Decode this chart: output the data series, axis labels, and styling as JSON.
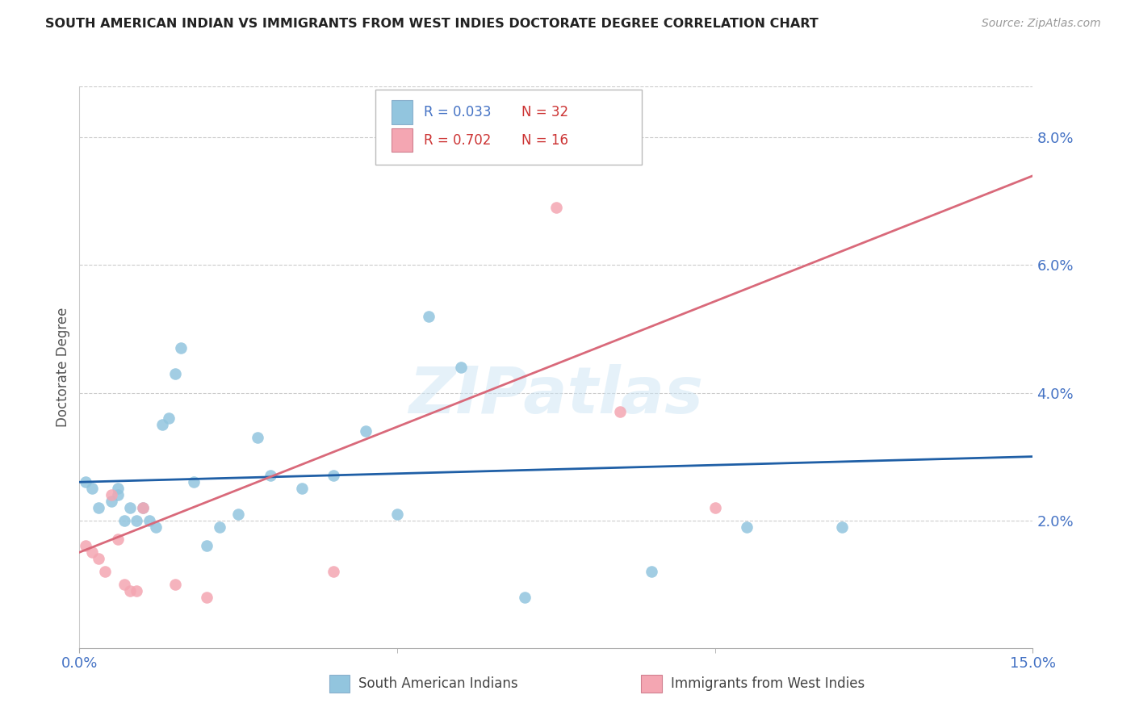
{
  "title": "SOUTH AMERICAN INDIAN VS IMMIGRANTS FROM WEST INDIES DOCTORATE DEGREE CORRELATION CHART",
  "source": "Source: ZipAtlas.com",
  "ylabel": "Doctorate Degree",
  "ytick_labels": [
    "2.0%",
    "4.0%",
    "6.0%",
    "8.0%"
  ],
  "ytick_values": [
    0.02,
    0.04,
    0.06,
    0.08
  ],
  "xlim": [
    0.0,
    0.15
  ],
  "ylim": [
    0.0,
    0.088
  ],
  "legend_label_blue": "South American Indians",
  "legend_label_pink": "Immigrants from West Indies",
  "blue_color": "#92c5de",
  "pink_color": "#f4a6b2",
  "line_blue_color": "#1f5fa6",
  "line_pink_color": "#d9697a",
  "tick_color": "#4472c4",
  "title_color": "#222222",
  "source_color": "#999999",
  "ylabel_color": "#555555",
  "grid_color": "#cccccc",
  "blue_scatter_x": [
    0.001,
    0.002,
    0.003,
    0.005,
    0.006,
    0.006,
    0.007,
    0.008,
    0.009,
    0.01,
    0.011,
    0.012,
    0.013,
    0.014,
    0.015,
    0.016,
    0.018,
    0.02,
    0.022,
    0.025,
    0.028,
    0.03,
    0.035,
    0.04,
    0.045,
    0.05,
    0.055,
    0.06,
    0.07,
    0.09,
    0.105,
    0.12
  ],
  "blue_scatter_y": [
    0.026,
    0.025,
    0.022,
    0.023,
    0.025,
    0.024,
    0.02,
    0.022,
    0.02,
    0.022,
    0.02,
    0.019,
    0.035,
    0.036,
    0.043,
    0.047,
    0.026,
    0.016,
    0.019,
    0.021,
    0.033,
    0.027,
    0.025,
    0.027,
    0.034,
    0.021,
    0.052,
    0.044,
    0.008,
    0.012,
    0.019,
    0.019
  ],
  "pink_scatter_x": [
    0.001,
    0.002,
    0.003,
    0.004,
    0.005,
    0.006,
    0.007,
    0.008,
    0.009,
    0.01,
    0.015,
    0.02,
    0.04,
    0.075,
    0.085,
    0.1
  ],
  "pink_scatter_y": [
    0.016,
    0.015,
    0.014,
    0.012,
    0.024,
    0.017,
    0.01,
    0.009,
    0.009,
    0.022,
    0.01,
    0.008,
    0.012,
    0.069,
    0.037,
    0.022
  ],
  "blue_line_x": [
    0.0,
    0.15
  ],
  "blue_line_y": [
    0.026,
    0.03
  ],
  "pink_line_x": [
    0.0,
    0.15
  ],
  "pink_line_y": [
    0.015,
    0.074
  ],
  "watermark": "ZIPatlas"
}
